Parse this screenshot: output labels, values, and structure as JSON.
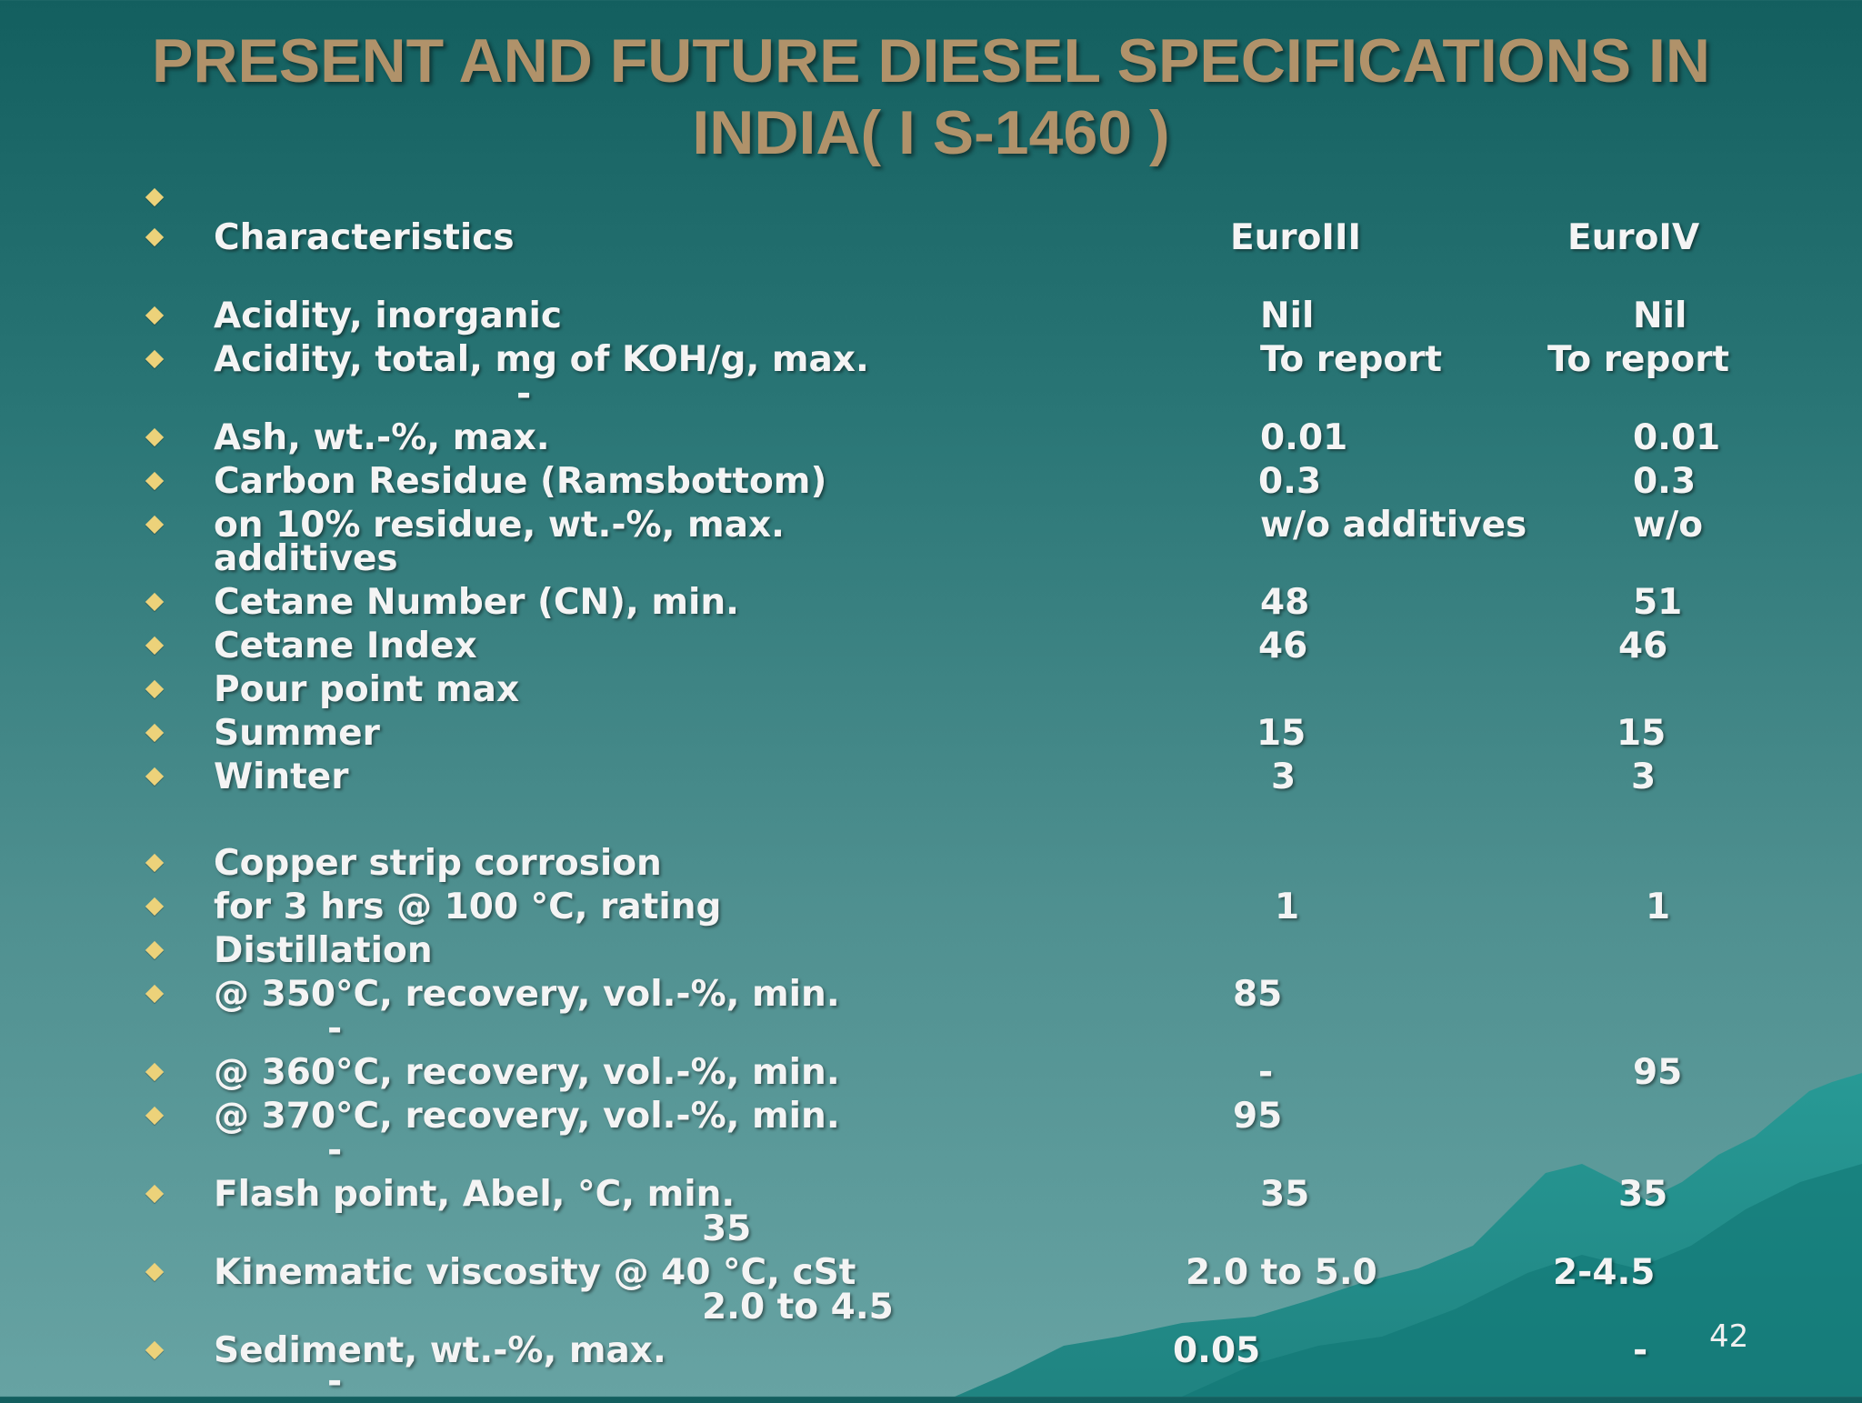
{
  "title": {
    "line1": "PRESENT AND FUTURE DIESEL SPECIFICATIONS IN",
    "line2": "INDIA( I S-1460 )"
  },
  "header": {
    "characteristics": "Characteristics",
    "euro3": "EuroIII",
    "euro4": "EuroIV"
  },
  "rows": {
    "r1": {
      "label": "Acidity, inorganic",
      "e3": "Nil",
      "e4": "Nil"
    },
    "r2": {
      "label": "Acidity, total, mg of KOH/g, max.",
      "extra": "-",
      "e3": "To report",
      "e4": "To report"
    },
    "r3": {
      "label": "Ash, wt.-%, max.",
      "e3": "0.01",
      "e4": "0.01"
    },
    "r4": {
      "label": "Carbon Residue (Ramsbottom)",
      "e3": "0.3",
      "e4": "0.3"
    },
    "r5": {
      "label": "on 10% residue, wt.-%, max.",
      "extra": "additives",
      "e3": "w/o additives",
      "e4": "w/o"
    },
    "r6": {
      "label": "Cetane Number (CN), min.",
      "e3": "48",
      "e4": "51"
    },
    "r7": {
      "label": "Cetane Index",
      "e3": "46",
      "e4": "46"
    },
    "r8": {
      "label": "Pour point max"
    },
    "r9": {
      "label": "Summer",
      "e3": "15",
      "e4": "15"
    },
    "r10": {
      "label": "Winter",
      "e3": "3",
      "e4": "3"
    },
    "r11": {
      "label": "Copper strip corrosion"
    },
    "r12": {
      "label": "for 3 hrs @ 100 °C, rating",
      "e3": "1",
      "e4": "1"
    },
    "r13": {
      "label": "Distillation"
    },
    "r14": {
      "label": "@ 350°C, recovery, vol.-%, min.",
      "extra": "-",
      "e3": "85"
    },
    "r15": {
      "label": "@ 360°C, recovery, vol.-%, min.",
      "e3": "-",
      "e4": "95"
    },
    "r16": {
      "label": "@ 370°C, recovery, vol.-%, min.",
      "extra": "-",
      "e3": "95"
    },
    "r17": {
      "label": "Flash point, Abel, °C, min.",
      "extra": "35",
      "e3": "35",
      "e4": "35"
    },
    "r18": {
      "label": "Kinematic viscosity @ 40 °C, cSt",
      "extra": "2.0 to 4.5",
      "e3": "2.0 to 5.0",
      "e4": "2-4.5"
    },
    "r19": {
      "label": "Sediment, wt.-%, max.",
      "extra": "-",
      "e3": "0.05",
      "e4": "-"
    }
  },
  "page_number": "42"
}
